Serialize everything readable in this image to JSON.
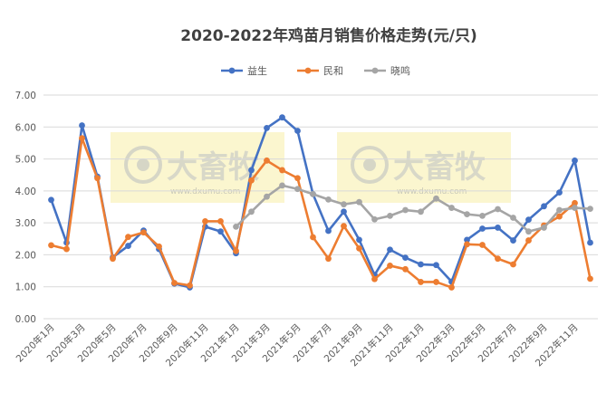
{
  "chart_data": {
    "type": "line",
    "title": "2020-2022年鸡苗月销售价格走势(元/只)",
    "ylim": [
      0,
      7
    ],
    "yticks": [
      "0.00",
      "1.00",
      "2.00",
      "3.00",
      "4.00",
      "5.00",
      "6.00",
      "7.00"
    ],
    "x": [
      "2020年1月",
      "2020年2月",
      "2020年3月",
      "2020年4月",
      "2020年5月",
      "2020年6月",
      "2020年7月",
      "2020年8月",
      "2020年9月",
      "2020年10月",
      "2020年11月",
      "2020年12月",
      "2021年1月",
      "2021年2月",
      "2021年3月",
      "2021年4月",
      "2021年5月",
      "2021年6月",
      "2021年7月",
      "2021年8月",
      "2021年9月",
      "2021年10月",
      "2021年11月",
      "2021年12月",
      "2022年1月",
      "2022年2月",
      "2022年3月",
      "2022年4月",
      "2022年5月",
      "2022年6月",
      "2022年7月",
      "2022年8月",
      "2022年9月",
      "2022年10月",
      "2022年11月",
      "2022年12月"
    ],
    "xtick_labels": [
      "2020年1月",
      "2020年3月",
      "2020年5月",
      "2020年7月",
      "2020年9月",
      "2020年11月",
      "2021年1月",
      "2021年3月",
      "2021年5月",
      "2021年7月",
      "2021年9月",
      "2021年11月",
      "2022年1月",
      "2022年3月",
      "2022年5月",
      "2022年7月",
      "2022年9月",
      "2022年11月"
    ],
    "legend_position": "top",
    "grid": true,
    "series": [
      {
        "name": "益生",
        "color": "#4472c4",
        "values": [
          3.72,
          2.38,
          6.05,
          4.45,
          1.92,
          2.28,
          2.76,
          2.18,
          1.1,
          0.98,
          2.88,
          2.73,
          2.05,
          4.65,
          5.97,
          6.3,
          5.88,
          3.9,
          2.75,
          3.35,
          2.47,
          1.37,
          2.16,
          1.91,
          1.7,
          1.68,
          1.16,
          2.47,
          2.82,
          2.85,
          2.45,
          3.1,
          3.52,
          3.95,
          4.95,
          2.38
        ]
      },
      {
        "name": "民和",
        "color": "#ed7d31",
        "values": [
          2.3,
          2.18,
          5.65,
          4.4,
          1.88,
          2.56,
          2.7,
          2.26,
          1.12,
          1.04,
          3.05,
          3.05,
          2.12,
          4.33,
          4.95,
          4.65,
          4.4,
          2.55,
          1.88,
          2.9,
          2.2,
          1.24,
          1.66,
          1.55,
          1.15,
          1.15,
          0.98,
          2.33,
          2.31,
          1.88,
          1.7,
          2.45,
          2.92,
          3.2,
          3.62,
          1.25
        ]
      },
      {
        "name": "晓鸣",
        "color": "#a5a5a5",
        "values": [
          null,
          null,
          null,
          null,
          null,
          null,
          null,
          null,
          null,
          null,
          null,
          null,
          2.88,
          3.35,
          3.82,
          4.17,
          4.06,
          3.9,
          3.73,
          3.58,
          3.65,
          3.11,
          3.22,
          3.4,
          3.35,
          3.76,
          3.47,
          3.27,
          3.22,
          3.43,
          3.16,
          2.73,
          2.85,
          3.4,
          3.47,
          3.44
        ]
      }
    ]
  },
  "watermark": {
    "brand": "大畜牧",
    "url": "www.dxumu.com"
  }
}
